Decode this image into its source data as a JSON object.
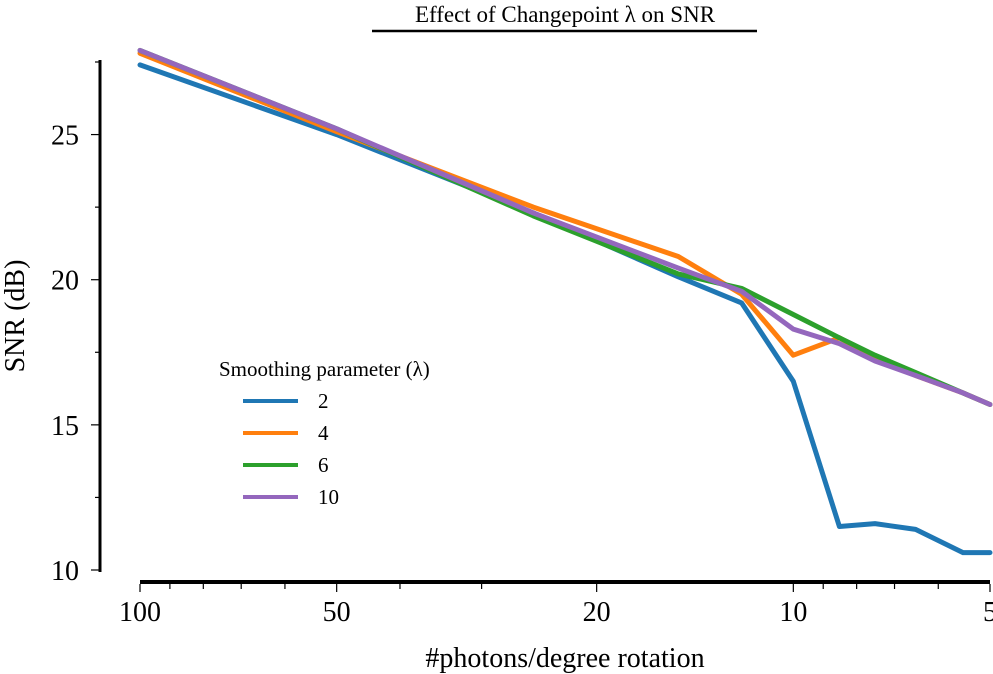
{
  "chart_data": {
    "type": "line",
    "title": "Effect of Changepoint λ on SNR",
    "xlabel": "#photons/degree rotation",
    "ylabel": "SNR (dB)",
    "x_scale": "log",
    "x_reversed": true,
    "xlim": [
      100,
      5
    ],
    "ylim": [
      10,
      27.5
    ],
    "xticks": [
      100,
      50,
      20,
      10,
      5
    ],
    "xtick_labels": [
      "100",
      "50",
      "20",
      "10",
      "5"
    ],
    "yticks": [
      10,
      15,
      20,
      25
    ],
    "ytick_labels": [
      "10",
      "15",
      "20",
      "25"
    ],
    "grid": false,
    "legend": {
      "title": "Smoothing parameter (λ)",
      "placement": "center-left"
    },
    "series": [
      {
        "name": "2",
        "color": "#1f77b4",
        "x": [
          100,
          50,
          25,
          15,
          12,
          10,
          8.5,
          7.5,
          6.5,
          5.5,
          5
        ],
        "y": [
          27.4,
          25.0,
          22.3,
          20.1,
          19.2,
          16.5,
          11.5,
          11.6,
          11.4,
          10.6,
          10.6
        ]
      },
      {
        "name": "4",
        "color": "#ff7f0e",
        "x": [
          100,
          50,
          25,
          15,
          12,
          10,
          8.5,
          7.5,
          6.5,
          5.5,
          5
        ],
        "y": [
          27.8,
          25.1,
          22.5,
          20.8,
          19.5,
          17.4,
          18.0,
          17.3,
          16.7,
          16.1,
          15.7
        ]
      },
      {
        "name": "6",
        "color": "#2ca02c",
        "x": [
          100,
          50,
          25,
          15,
          12,
          10,
          8.5,
          7.5,
          6.5,
          5.5,
          5
        ],
        "y": [
          27.9,
          25.2,
          22.2,
          20.2,
          19.7,
          18.8,
          18.0,
          17.4,
          16.8,
          16.1,
          15.7
        ]
      },
      {
        "name": "10",
        "color": "#9467bd",
        "x": [
          100,
          50,
          25,
          15,
          12,
          10,
          8.5,
          7.5,
          6.5,
          5.5,
          5
        ],
        "y": [
          27.9,
          25.2,
          22.3,
          20.4,
          19.6,
          18.3,
          17.8,
          17.2,
          16.7,
          16.1,
          15.7
        ]
      }
    ]
  }
}
